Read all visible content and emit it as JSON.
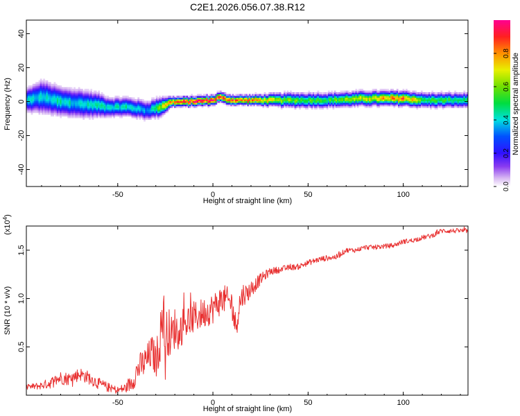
{
  "title": "C2E1.2026.056.07.38.R12",
  "chart_data": [
    {
      "type": "heatmap",
      "name": "spectrogram",
      "xlabel": "Height of straight line (km)",
      "ylabel": "Frequency (Hz)",
      "xlim": [
        -98,
        134
      ],
      "ylim": [
        -50,
        48
      ],
      "xticks": [
        -50,
        0,
        50,
        100
      ],
      "yticks": [
        -40,
        -20,
        0,
        20,
        40
      ],
      "colorbar": {
        "label": "Normalized spectral amplitude",
        "range": [
          0,
          1
        ],
        "ticks": [
          0.0,
          0.2,
          0.4,
          0.6,
          0.8
        ]
      },
      "ridge": {
        "x": [
          -98,
          -90,
          -80,
          -70,
          -60,
          -55,
          -45,
          -35,
          -28,
          -22,
          -15,
          0,
          3,
          5,
          10,
          20,
          40,
          60,
          80,
          100,
          110,
          134
        ],
        "y": [
          1,
          3,
          0,
          -1,
          -2,
          -3,
          -3,
          -5,
          -3,
          0,
          0,
          1,
          3,
          2,
          1,
          1,
          1,
          1,
          2,
          2,
          1,
          1
        ],
        "halfwidth_hz": [
          5,
          7,
          6,
          6,
          5,
          4,
          4,
          4,
          4,
          2,
          2,
          2,
          2,
          2,
          2,
          2,
          3,
          3,
          3,
          3,
          3,
          3
        ],
        "amplitude": [
          0.4,
          0.4,
          0.45,
          0.4,
          0.45,
          0.4,
          0.45,
          0.35,
          0.6,
          0.9,
          0.95,
          0.95,
          0.9,
          0.95,
          0.9,
          0.85,
          0.6,
          0.55,
          0.7,
          0.9,
          0.55,
          0.5
        ]
      }
    },
    {
      "type": "line",
      "name": "snr",
      "xlabel": "Height of straight line (km)",
      "ylabel": "SNR (10 * v/v)",
      "multiplier": "(x10",
      "multiplier_exp": "4",
      "multiplier_close": ")",
      "xlim": [
        -98,
        134
      ],
      "ylim": [
        0,
        17500
      ],
      "xticks": [
        -50,
        0,
        50,
        100
      ],
      "yticks": [
        5000,
        10000,
        15000
      ],
      "ytick_labels": [
        "0.5",
        "1.0",
        "1.5"
      ],
      "series": [
        {
          "name": "SNR",
          "color": "#e83030",
          "x": [
            -98,
            -90,
            -85,
            -80,
            -75,
            -70,
            -65,
            -60,
            -55,
            -50,
            -45,
            -42,
            -40,
            -38,
            -35,
            -32,
            -30,
            -28,
            -26,
            -25,
            -24,
            -22,
            -20,
            -18,
            -15,
            -10,
            -5,
            0,
            5,
            10,
            12,
            14,
            16,
            18,
            20,
            25,
            30,
            35,
            40,
            45,
            50,
            55,
            60,
            65,
            70,
            75,
            80,
            85,
            90,
            95,
            100,
            105,
            110,
            115,
            120,
            125,
            130,
            134
          ],
          "y": [
            800,
            1000,
            1300,
            1800,
            1700,
            2200,
            1800,
            1200,
            800,
            500,
            800,
            1500,
            2500,
            3000,
            3500,
            4500,
            3500,
            5500,
            9000,
            4000,
            7000,
            6000,
            7000,
            6500,
            7500,
            8000,
            8500,
            9000,
            10000,
            9500,
            7000,
            9500,
            10500,
            10500,
            11000,
            12000,
            12800,
            13000,
            13200,
            13300,
            13700,
            14000,
            14200,
            14300,
            15000,
            15000,
            15300,
            15300,
            15400,
            15500,
            15900,
            16000,
            16300,
            16500,
            17000,
            17000,
            17000,
            17000
          ],
          "jitter": [
            300,
            400,
            600,
            700,
            700,
            700,
            700,
            600,
            500,
            400,
            600,
            1000,
            1300,
            1500,
            1700,
            1800,
            1800,
            2500,
            3000,
            3000,
            2800,
            2200,
            2200,
            2000,
            1800,
            1700,
            1600,
            1600,
            1500,
            1500,
            1500,
            1400,
            1200,
            1000,
            900,
            600,
            400,
            350,
            300,
            300,
            300,
            300,
            300,
            300,
            250,
            250,
            250,
            250,
            250,
            250,
            250,
            250,
            250,
            250,
            250,
            250,
            250,
            250
          ]
        }
      ]
    }
  ]
}
